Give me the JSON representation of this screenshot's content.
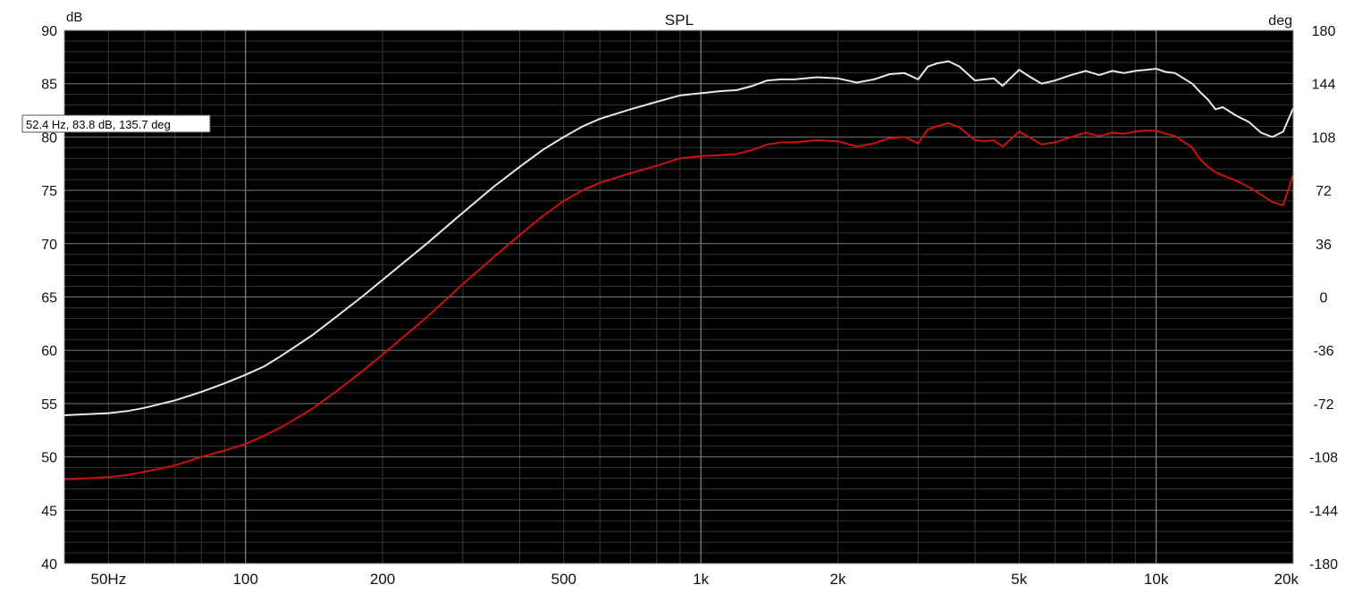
{
  "chart_data": {
    "type": "line",
    "title": "SPL",
    "x_scale": "log",
    "xlim": [
      40,
      20000
    ],
    "ylim": [
      40,
      90
    ],
    "y2lim": [
      -180,
      180
    ],
    "ylabel": "dB",
    "y2label": "deg",
    "grid": true,
    "background": "#000000",
    "x_ticks": [
      {
        "value": 50,
        "label": "50Hz"
      },
      {
        "value": 100,
        "label": "100"
      },
      {
        "value": 200,
        "label": "200"
      },
      {
        "value": 500,
        "label": "500"
      },
      {
        "value": 1000,
        "label": "1k"
      },
      {
        "value": 2000,
        "label": "2k"
      },
      {
        "value": 5000,
        "label": "5k"
      },
      {
        "value": 10000,
        "label": "10k"
      },
      {
        "value": 20000,
        "label": "20k"
      }
    ],
    "y_ticks": [
      {
        "value": 90,
        "label": "90"
      },
      {
        "value": 85,
        "label": "85"
      },
      {
        "value": 80,
        "label": "80"
      },
      {
        "value": 75,
        "label": "75"
      },
      {
        "value": 70,
        "label": "70"
      },
      {
        "value": 65,
        "label": "65"
      },
      {
        "value": 60,
        "label": "60"
      },
      {
        "value": 55,
        "label": "55"
      },
      {
        "value": 50,
        "label": "50"
      },
      {
        "value": 45,
        "label": "45"
      },
      {
        "value": 40,
        "label": "40"
      }
    ],
    "y2_ticks": [
      {
        "value": 180,
        "label": "180"
      },
      {
        "value": 144,
        "label": "144"
      },
      {
        "value": 108,
        "label": "108"
      },
      {
        "value": 72,
        "label": "72"
      },
      {
        "value": 36,
        "label": "36"
      },
      {
        "value": 0,
        "label": "0"
      },
      {
        "value": -36,
        "label": "-36"
      },
      {
        "value": -72,
        "label": "-72"
      },
      {
        "value": -108,
        "label": "-108"
      },
      {
        "value": -144,
        "label": "-144"
      },
      {
        "value": -180,
        "label": "-180"
      }
    ],
    "cursor_readout": "52.4 Hz, 83.8 dB, 135.7 deg",
    "series": [
      {
        "color": "#e8e8e8",
        "x": [
          40,
          45,
          50,
          55,
          60,
          70,
          80,
          90,
          100,
          110,
          120,
          140,
          160,
          180,
          200,
          250,
          300,
          350,
          400,
          450,
          500,
          550,
          600,
          700,
          800,
          900,
          1000,
          1100,
          1200,
          1300,
          1400,
          1500,
          1600,
          1800,
          2000,
          2200,
          2400,
          2600,
          2800,
          3000,
          3150,
          3300,
          3500,
          3700,
          4000,
          4200,
          4400,
          4600,
          5000,
          5300,
          5600,
          6000,
          6500,
          7000,
          7500,
          8000,
          8500,
          9000,
          9500,
          10000,
          10500,
          11000,
          12000,
          12500,
          13000,
          13500,
          14000,
          15000,
          16000,
          17000,
          18000,
          19000,
          20000
        ],
        "values": [
          53.9,
          54.0,
          54.1,
          54.3,
          54.6,
          55.3,
          56.1,
          56.9,
          57.7,
          58.5,
          59.5,
          61.4,
          63.3,
          65.0,
          66.6,
          70.0,
          72.9,
          75.3,
          77.2,
          78.8,
          80.0,
          81.0,
          81.7,
          82.6,
          83.3,
          83.9,
          84.1,
          84.3,
          84.4,
          84.8,
          85.3,
          85.4,
          85.4,
          85.6,
          85.5,
          85.1,
          85.4,
          85.9,
          86.0,
          85.4,
          86.6,
          86.9,
          87.1,
          86.6,
          85.3,
          85.4,
          85.5,
          84.8,
          86.3,
          85.6,
          85.0,
          85.3,
          85.8,
          86.2,
          85.8,
          86.2,
          86.0,
          86.2,
          86.3,
          86.4,
          86.1,
          86.0,
          85.0,
          84.2,
          83.5,
          82.6,
          82.8,
          82.0,
          81.4,
          80.4,
          80.0,
          80.5,
          82.7
        ]
      },
      {
        "color": "#cc1111",
        "x": [
          40,
          45,
          50,
          55,
          60,
          70,
          80,
          90,
          100,
          110,
          120,
          140,
          160,
          180,
          200,
          250,
          300,
          350,
          400,
          450,
          500,
          550,
          600,
          700,
          800,
          900,
          1000,
          1100,
          1200,
          1300,
          1400,
          1500,
          1600,
          1800,
          2000,
          2200,
          2400,
          2600,
          2800,
          3000,
          3150,
          3300,
          3500,
          3700,
          4000,
          4200,
          4400,
          4600,
          5000,
          5300,
          5600,
          6000,
          6500,
          7000,
          7500,
          8000,
          8500,
          9000,
          9500,
          10000,
          10500,
          11000,
          12000,
          12500,
          13000,
          13500,
          14000,
          15000,
          16000,
          17000,
          18000,
          19000,
          20000
        ],
        "values": [
          47.9,
          48.0,
          48.1,
          48.3,
          48.6,
          49.2,
          50.0,
          50.6,
          51.2,
          52.0,
          52.8,
          54.5,
          56.3,
          58.0,
          59.6,
          63.1,
          66.2,
          68.7,
          70.8,
          72.6,
          74.0,
          75.0,
          75.7,
          76.6,
          77.3,
          78.0,
          78.2,
          78.3,
          78.4,
          78.8,
          79.3,
          79.5,
          79.5,
          79.7,
          79.6,
          79.1,
          79.4,
          79.9,
          80.0,
          79.4,
          80.7,
          81.0,
          81.3,
          80.9,
          79.7,
          79.6,
          79.7,
          79.1,
          80.5,
          79.9,
          79.3,
          79.5,
          80.0,
          80.4,
          80.1,
          80.4,
          80.3,
          80.5,
          80.6,
          80.6,
          80.3,
          80.1,
          79.0,
          77.9,
          77.2,
          76.7,
          76.4,
          75.9,
          75.3,
          74.6,
          73.9,
          73.6,
          76.5
        ]
      }
    ]
  }
}
